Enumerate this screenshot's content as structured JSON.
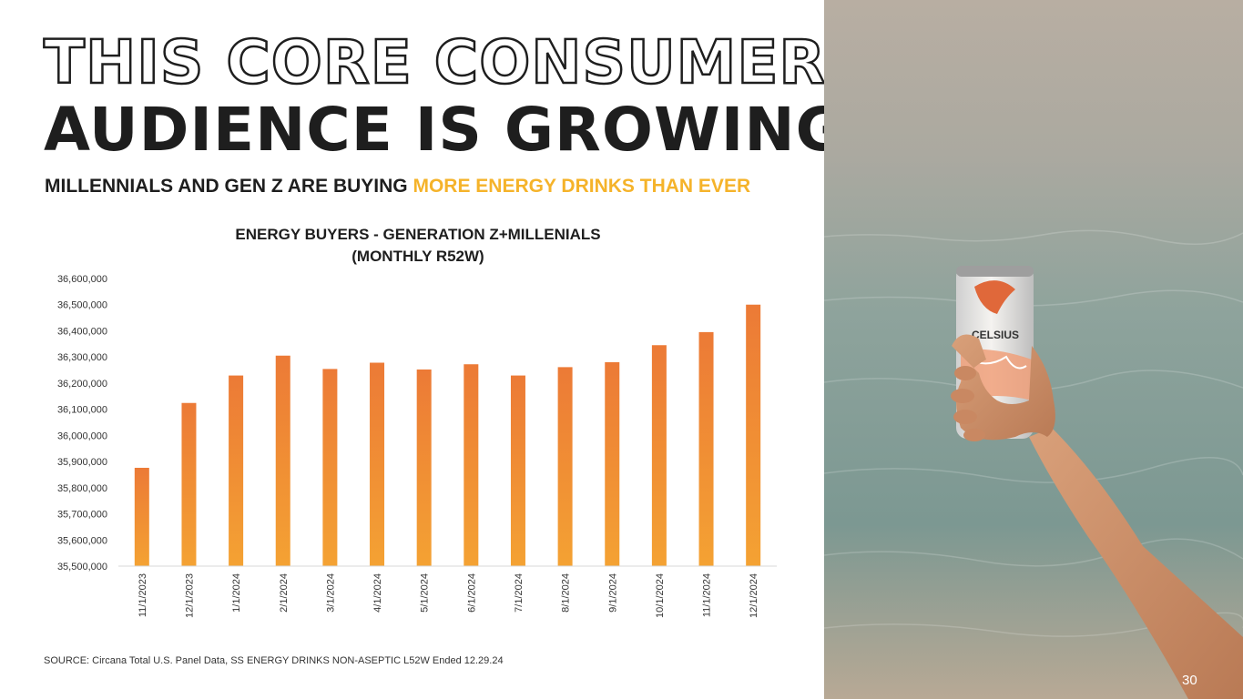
{
  "slide": {
    "title_line1": "THIS CORE CONSUMER",
    "title_line2": "AUDIENCE IS GROWING",
    "subtitle_lead": "MILLENNIALS AND GEN Z ARE BUYING ",
    "subtitle_highlight": "MORE ENERGY DRINKS THAN EVER",
    "source": "SOURCE: Circana Total U.S. Panel Data, SS ENERGY DRINKS NON-ASEPTIC L52W Ended 12.29.24",
    "page_number": "30",
    "can_brand": "CELSIUS",
    "colors": {
      "accent": "#f5b32a",
      "bar_top": "#ec7a36",
      "bar_bottom": "#f4a233",
      "text": "#1e1e1e"
    }
  },
  "chart_data": {
    "type": "bar",
    "title_line1": "ENERGY BUYERS - GENERATION Z+MILLENIALS",
    "title_line2": "(MONTHLY R52W)",
    "categories": [
      "11/1/2023",
      "12/1/2023",
      "1/1/2024",
      "2/1/2024",
      "3/1/2024",
      "4/1/2024",
      "5/1/2024",
      "6/1/2024",
      "7/1/2024",
      "8/1/2024",
      "9/1/2024",
      "10/1/2024",
      "11/1/2024",
      "12/1/2024"
    ],
    "values": [
      35876000,
      36124000,
      36229000,
      36305000,
      36254000,
      36278000,
      36252000,
      36272000,
      36229000,
      36261000,
      36280000,
      36345000,
      36395000,
      36500000
    ],
    "ylim": [
      35500000,
      36600000
    ],
    "yticks": [
      35500000,
      35600000,
      35700000,
      35800000,
      35900000,
      36000000,
      36100000,
      36200000,
      36300000,
      36400000,
      36500000,
      36600000
    ],
    "ytick_labels": [
      "35,500,000",
      "35,600,000",
      "35,700,000",
      "35,800,000",
      "35,900,000",
      "36,000,000",
      "36,100,000",
      "36,200,000",
      "36,300,000",
      "36,400,000",
      "36,500,000",
      "36,600,000"
    ],
    "grid": false,
    "legend": "none"
  }
}
